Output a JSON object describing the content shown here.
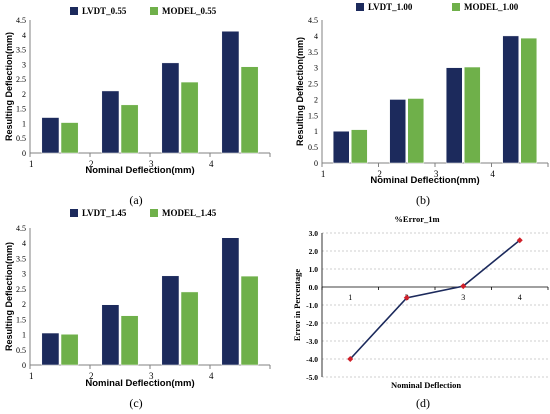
{
  "colors": {
    "lvdt": "#1c2a5c",
    "model": "#6fb04a",
    "error_line": "#1c2a5c",
    "error_marker": "#d0202a",
    "axis": "#808080",
    "grid": "#a0a0a0",
    "text": "#000000"
  },
  "chart_data": [
    {
      "type": "bar",
      "caption": "(a)",
      "categories": [
        "1",
        "2",
        "3",
        "4"
      ],
      "series": [
        {
          "name": "LVDT_0.55",
          "values": [
            1.2,
            2.1,
            3.05,
            4.12
          ]
        },
        {
          "name": "MODEL_0.55",
          "values": [
            1.03,
            1.63,
            2.4,
            2.92
          ]
        }
      ],
      "xlabel": "Nominal Deflection(mm)",
      "ylabel": "Resulting Deflection(mm)",
      "ylim": [
        0,
        4.5
      ],
      "yticks": [
        "0",
        "0.5",
        "1",
        "1.5",
        "2",
        "2.5",
        "3",
        "3.5",
        "4",
        "4.5"
      ],
      "legend": "top"
    },
    {
      "type": "bar",
      "caption": "(b)",
      "categories": [
        "1",
        "2",
        "3",
        "4"
      ],
      "series": [
        {
          "name": "LVDT_1.00",
          "values": [
            1.0,
            2.0,
            3.0,
            4.0
          ]
        },
        {
          "name": "MODEL_1.00",
          "values": [
            1.05,
            2.03,
            3.02,
            3.93
          ]
        }
      ],
      "xlabel": "Nominal Deflection(mm)",
      "ylabel": "Resulting Deflection(mm)",
      "ylim": [
        0,
        4.5
      ],
      "yticks": [
        "0",
        "0.5",
        "1",
        "1.5",
        "2",
        "2.5",
        "3",
        "3.5",
        "4",
        "4.5"
      ],
      "legend": "top"
    },
    {
      "type": "bar",
      "caption": "(c)",
      "categories": [
        "1",
        "2",
        "3",
        "4"
      ],
      "series": [
        {
          "name": "LVDT_1.45",
          "values": [
            1.05,
            1.98,
            2.93,
            4.18
          ]
        },
        {
          "name": "MODEL_1.45",
          "values": [
            1.01,
            1.62,
            2.4,
            2.92
          ]
        }
      ],
      "xlabel": "Nominal Deflection(mm)",
      "ylabel": "Resulting Deflection(mm)",
      "ylim": [
        0,
        4.5
      ],
      "yticks": [
        "0",
        "0.5",
        "1",
        "1.5",
        "2",
        "2.5",
        "3",
        "3.5",
        "4",
        "4.5"
      ],
      "legend": "top"
    },
    {
      "type": "line",
      "caption": "(d)",
      "title": "%Error_1m",
      "x": [
        "1",
        "2",
        "3",
        "4"
      ],
      "series": [
        {
          "values": [
            -4.0,
            -0.6,
            0.05,
            2.6
          ]
        }
      ],
      "xlabel": "Nominal Deflection",
      "ylabel": "Error in Percentage",
      "ylim": [
        -5.0,
        3.0
      ],
      "yticks": [
        "-5.0",
        "-4.0",
        "-3.0",
        "-2.0",
        "-1.0",
        "0.0",
        "1.0",
        "2.0",
        "3.0"
      ],
      "grid": true
    }
  ]
}
